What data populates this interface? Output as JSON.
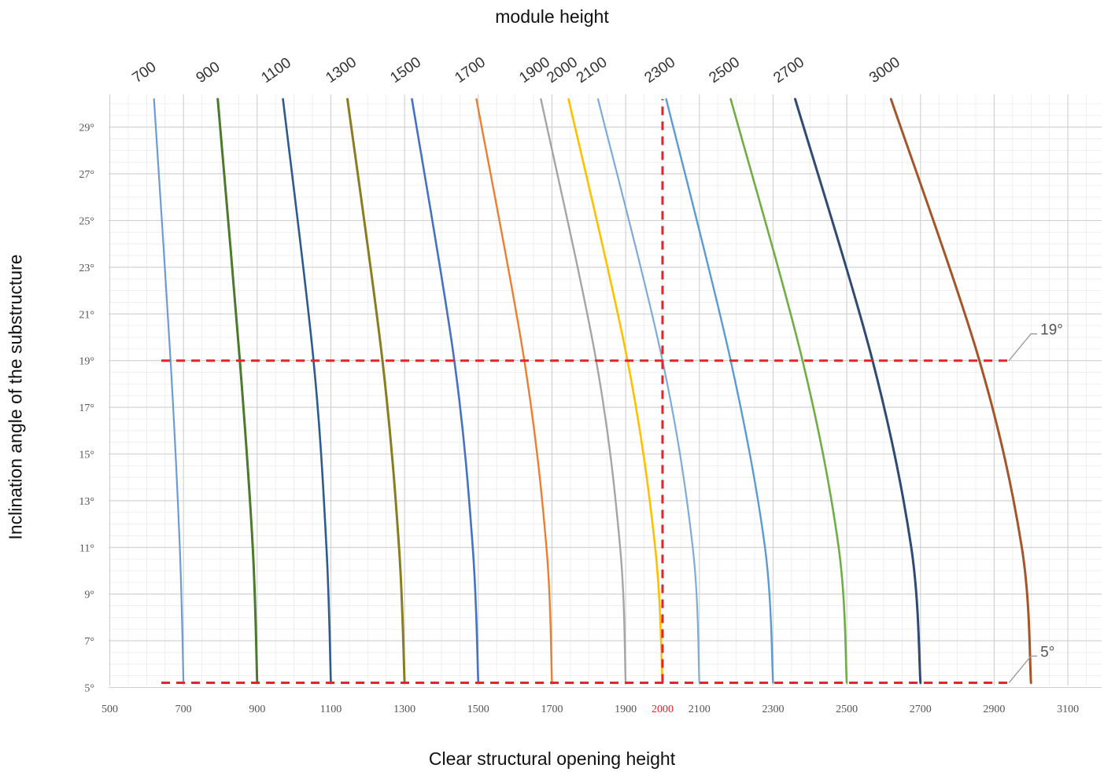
{
  "chart_data": {
    "type": "line",
    "title": "module height",
    "xlabel": "Clear structural opening height",
    "ylabel": "Inclination angle of the substructure",
    "xlim": [
      500,
      3200
    ],
    "ylim": [
      5,
      30.2
    ],
    "grid": true,
    "x_ticks": [
      {
        "value": 500,
        "label": "500"
      },
      {
        "value": 700,
        "label": "700"
      },
      {
        "value": 900,
        "label": "900"
      },
      {
        "value": 1100,
        "label": "1100"
      },
      {
        "value": 1300,
        "label": "1300"
      },
      {
        "value": 1500,
        "label": "1500"
      },
      {
        "value": 1700,
        "label": "1700"
      },
      {
        "value": 1900,
        "label": "1900"
      },
      {
        "value": 2000,
        "label": "2000",
        "highlight": true
      },
      {
        "value": 2100,
        "label": "2100"
      },
      {
        "value": 2300,
        "label": "2300"
      },
      {
        "value": 2500,
        "label": "2500"
      },
      {
        "value": 2700,
        "label": "2700"
      },
      {
        "value": 2900,
        "label": "2900"
      },
      {
        "value": 3100,
        "label": "3100"
      }
    ],
    "y_ticks": [
      {
        "value": 5,
        "label": "5°"
      },
      {
        "value": 7,
        "label": "7°"
      },
      {
        "value": 9,
        "label": "9°"
      },
      {
        "value": 11,
        "label": "11°"
      },
      {
        "value": 13,
        "label": "13°"
      },
      {
        "value": 15,
        "label": "15°"
      },
      {
        "value": 17,
        "label": "17°"
      },
      {
        "value": 19,
        "label": "19°"
      },
      {
        "value": 21,
        "label": "21°"
      },
      {
        "value": 23,
        "label": "23°"
      },
      {
        "value": 25,
        "label": "25°"
      },
      {
        "value": 27,
        "label": "27°"
      },
      {
        "value": 29,
        "label": "29°"
      }
    ],
    "series": [
      {
        "name": "700",
        "color": "#6f9ad8",
        "width": 2.2,
        "points": [
          [
            700,
            5.2
          ],
          [
            690,
            11
          ],
          [
            665,
            19
          ],
          [
            620,
            30.2
          ]
        ]
      },
      {
        "name": "900",
        "color": "#4a7a2a",
        "width": 3,
        "points": [
          [
            900,
            5.2
          ],
          [
            888,
            11
          ],
          [
            853,
            19
          ],
          [
            793,
            30.2
          ]
        ]
      },
      {
        "name": "1100",
        "color": "#2e5b8e",
        "width": 2.6,
        "points": [
          [
            1100,
            5.2
          ],
          [
            1088,
            11
          ],
          [
            1053,
            19
          ],
          [
            970,
            30.2
          ]
        ]
      },
      {
        "name": "1300",
        "color": "#8a7d1f",
        "width": 3,
        "points": [
          [
            1300,
            5.2
          ],
          [
            1285,
            11
          ],
          [
            1240,
            19
          ],
          [
            1145,
            30.2
          ]
        ]
      },
      {
        "name": "1500",
        "color": "#4472c4",
        "width": 2.6,
        "points": [
          [
            1500,
            5.2
          ],
          [
            1485,
            11
          ],
          [
            1435,
            19
          ],
          [
            1320,
            30.2
          ]
        ]
      },
      {
        "name": "1700",
        "color": "#ed7d31",
        "width": 2.4,
        "points": [
          [
            1700,
            5.2
          ],
          [
            1685,
            11
          ],
          [
            1625,
            19
          ],
          [
            1495,
            30.2
          ]
        ]
      },
      {
        "name": "1900",
        "color": "#a5a5a5",
        "width": 2.4,
        "points": [
          [
            1900,
            5.2
          ],
          [
            1885,
            11
          ],
          [
            1820,
            19
          ],
          [
            1670,
            30.2
          ]
        ]
      },
      {
        "name": "2000",
        "color": "#ffc000",
        "width": 2.6,
        "points": [
          [
            2000,
            5.2
          ],
          [
            1980,
            11
          ],
          [
            1905,
            19
          ],
          [
            1745,
            30.2
          ]
        ]
      },
      {
        "name": "2100",
        "color": "#7fabd9",
        "width": 2.2,
        "points": [
          [
            2100,
            5.2
          ],
          [
            2082,
            11
          ],
          [
            2000,
            19
          ],
          [
            1825,
            30.2
          ]
        ]
      },
      {
        "name": "2300",
        "color": "#5b9bd5",
        "width": 2.4,
        "points": [
          [
            2300,
            5.2
          ],
          [
            2278,
            11
          ],
          [
            2185,
            19
          ],
          [
            2010,
            30.2
          ]
        ]
      },
      {
        "name": "2500",
        "color": "#70ad47",
        "width": 2.6,
        "points": [
          [
            2500,
            5.2
          ],
          [
            2478,
            11
          ],
          [
            2380,
            19
          ],
          [
            2185,
            30.2
          ]
        ]
      },
      {
        "name": "2700",
        "color": "#2f4a73",
        "width": 3,
        "points": [
          [
            2700,
            5.2
          ],
          [
            2675,
            11
          ],
          [
            2570,
            19
          ],
          [
            2360,
            30.2
          ]
        ]
      },
      {
        "name": "3000",
        "color": "#a5552a",
        "width": 3,
        "points": [
          [
            3000,
            5.2
          ],
          [
            2975,
            11
          ],
          [
            2860,
            19
          ],
          [
            2620,
            30.2
          ]
        ]
      }
    ],
    "reference_lines": [
      {
        "orientation": "horizontal",
        "value": 19,
        "from": 640,
        "to": 2940,
        "label": "19°"
      },
      {
        "orientation": "horizontal",
        "value": 5.2,
        "from": 640,
        "to": 2940,
        "label": "5°"
      },
      {
        "orientation": "vertical",
        "value": 2000,
        "from": 5.2,
        "to": 30.2
      }
    ],
    "reference_color": "#e0252b"
  }
}
